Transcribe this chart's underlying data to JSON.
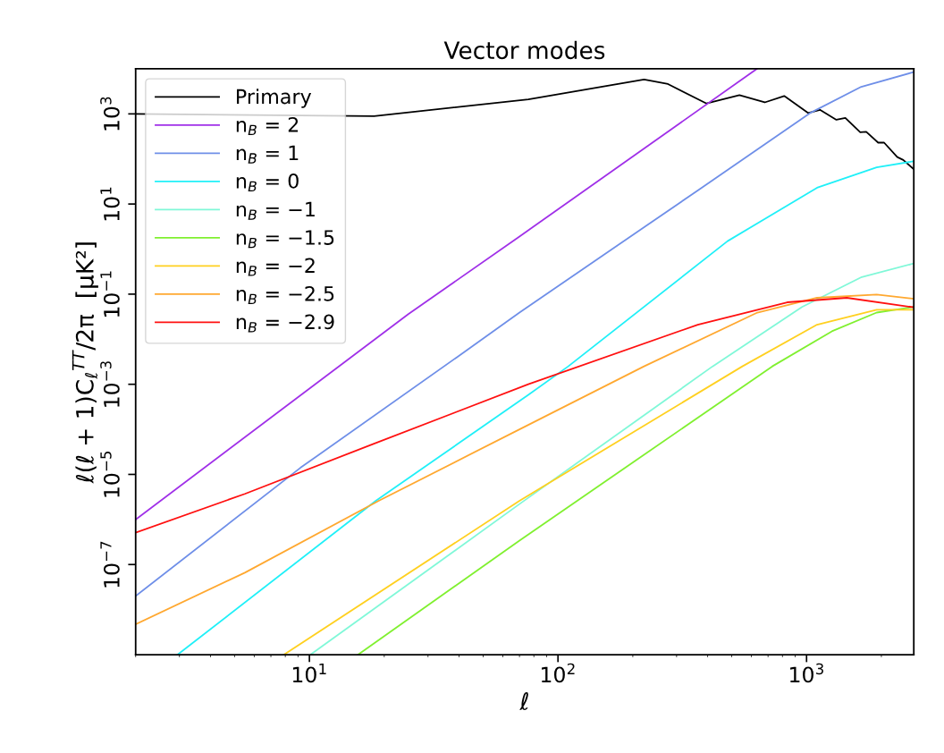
{
  "chart_data": {
    "type": "line",
    "title": "Vector modes",
    "xlabel": "ℓ",
    "ylabel": "ℓ(ℓ + 1)C$_{ℓ}$$^{TT}$/2π  [μK²]",
    "log": "xy",
    "xlim": [
      2,
      2700
    ],
    "ylim": [
      1e-09,
      10000
    ],
    "xticks": [
      {
        "value": 10,
        "label": "10$^{1}$"
      },
      {
        "value": 100,
        "label": "10$^{2}$"
      },
      {
        "value": 1000,
        "label": "10$^{3}$"
      }
    ],
    "yticks": [
      {
        "value": 1e-07,
        "label": "10$^{−7}$"
      },
      {
        "value": 1e-05,
        "label": "10$^{−5}$"
      },
      {
        "value": 0.001,
        "label": "10$^{−3}$"
      },
      {
        "value": 0.1,
        "label": "10$^{−1}$"
      },
      {
        "value": 10,
        "label": "10$^{1}$"
      },
      {
        "value": 1000,
        "label": "10$^{3}$"
      }
    ],
    "grid": false,
    "legend": "top left",
    "marker": "none",
    "line_style": "solid",
    "series": [
      {
        "name": "Primary",
        "color": "#000000",
        "x": [
          2,
          18.2,
          76,
          222,
          277,
          396,
          537,
          679,
          813,
          1014,
          1132,
          1318,
          1432,
          1644,
          1738,
          1941,
          2051,
          2317,
          2449,
          2700
        ],
        "values": [
          1000,
          890,
          2100,
          5800,
          4600,
          1700,
          2600,
          1800,
          2500,
          1050,
          1230,
          740,
          810,
          390,
          400,
          230,
          230,
          110,
          95,
          59
        ]
      },
      {
        "name": "n$_{B}$ = 2",
        "color": "#a030e8",
        "x": [
          2,
          25,
          70,
          631
        ],
        "values": [
          1e-06,
          0.036,
          1.9,
          10000
        ]
      },
      {
        "name": "n$_{B}$ = 1",
        "color": "#6f8fe8",
        "x": [
          2,
          9.2,
          39,
          70,
          365,
          1042,
          1660,
          2700
        ],
        "values": [
          2e-08,
          1.4e-05,
          0.0039,
          0.039,
          20,
          1070,
          4000,
          8500
        ]
      },
      {
        "name": "n$_{B}$ = 0",
        "color": "#20f0f8",
        "x": [
          2.95,
          18.5,
          76,
          110,
          481,
          1102,
          1914,
          2700
        ],
        "values": [
          1e-09,
          2.6e-06,
          0.00058,
          0.0025,
          1.5,
          23,
          65,
          89
        ]
      },
      {
        "name": "n$_{B}$ = −1",
        "color": "#80f8d8",
        "x": [
          10.1,
          70,
          419,
          959,
          1667,
          2700
        ],
        "values": [
          1e-09,
          2.2e-06,
          0.0025,
          0.052,
          0.24,
          0.48
        ]
      },
      {
        "name": "n$_{B}$ = −1.5",
        "color": "#80f030",
        "x": [
          15.7,
          70,
          728,
          1265,
          1914,
          2700
        ],
        "values": [
          1e-09,
          3.4e-07,
          0.0025,
          0.015,
          0.039,
          0.052
        ]
      },
      {
        "name": "n$_{B}$ = −2",
        "color": "#ffd020",
        "x": [
          7.9,
          70,
          552,
          1102,
          1914,
          2700
        ],
        "values": [
          1e-09,
          2.6e-06,
          0.0025,
          0.021,
          0.045,
          0.045
        ]
      },
      {
        "name": "n$_{B}$ = −2.5",
        "color": "#ffa830",
        "x": [
          2,
          5.5,
          19,
          70,
          222,
          634,
          1102,
          1914,
          2700
        ],
        "values": [
          4.7e-09,
          6.6e-08,
          2.6e-06,
          0.0001,
          0.0025,
          0.039,
          0.083,
          0.098,
          0.079
        ]
      },
      {
        "name": "n$_{B}$ = −2.9",
        "color": "#ff1010",
        "x": [
          2,
          5.5,
          18,
          76,
          365,
          836,
          1452,
          2700
        ],
        "values": [
          5.1e-07,
          3.7e-06,
          4.7e-05,
          0.001,
          0.021,
          0.066,
          0.083,
          0.051
        ]
      }
    ]
  }
}
